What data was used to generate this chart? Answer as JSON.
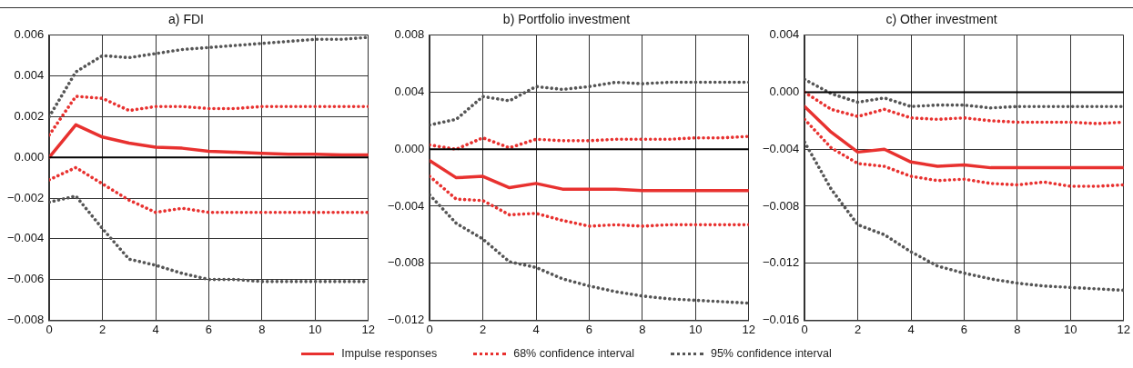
{
  "chart_data": [
    {
      "type": "line",
      "title": "a) FDI",
      "x": [
        0,
        1,
        2,
        3,
        4,
        5,
        6,
        7,
        8,
        9,
        10,
        11,
        12
      ],
      "xlim": [
        0,
        12
      ],
      "xticks": [
        0,
        2,
        4,
        6,
        8,
        10,
        12
      ],
      "ylim": [
        -0.008,
        0.006
      ],
      "yticks": [
        {
          "value": 0.006,
          "label": "0.006"
        },
        {
          "value": 0.004,
          "label": "0.004"
        },
        {
          "value": 0.002,
          "label": "0.002"
        },
        {
          "value": 0,
          "label": "0.000"
        },
        {
          "value": -0.002,
          "label": "−0.002"
        },
        {
          "value": -0.004,
          "label": "−0.004"
        },
        {
          "value": -0.006,
          "label": "−0.006"
        },
        {
          "value": -0.008,
          "label": "−0.008"
        }
      ],
      "grid": true,
      "ref_lines": [
        {
          "axis": "y",
          "value": 0,
          "color": "#000000"
        }
      ],
      "series": [
        {
          "color": "#555555",
          "line_style": "dotted",
          "values": [
            0.002,
            0.0042,
            0.005,
            0.0049,
            0.0051,
            0.0053,
            0.0054,
            0.0055,
            0.0056,
            0.0057,
            0.0058,
            0.0058,
            0.0059
          ]
        },
        {
          "color": "#555555",
          "line_style": "dotted",
          "values": [
            -0.0022,
            -0.0019,
            -0.0035,
            -0.005,
            -0.0053,
            -0.0057,
            -0.006,
            -0.006,
            -0.0061,
            -0.0061,
            -0.0061,
            -0.0061,
            -0.0061
          ]
        },
        {
          "color": "#e8312f",
          "line_style": "dotted",
          "values": [
            0.0011,
            0.003,
            0.0029,
            0.0023,
            0.0025,
            0.0025,
            0.0024,
            0.0024,
            0.0025,
            0.0025,
            0.0025,
            0.0025,
            0.0025
          ]
        },
        {
          "color": "#e8312f",
          "line_style": "dotted",
          "values": [
            -0.0011,
            -0.0005,
            -0.0013,
            -0.0021,
            -0.0027,
            -0.0025,
            -0.0027,
            -0.0027,
            -0.0027,
            -0.0027,
            -0.0027,
            -0.0027,
            -0.0027
          ]
        },
        {
          "color": "#e8312f",
          "line_style": "solid",
          "values": [
            0,
            0.0016,
            0.001,
            0.0007,
            0.0005,
            0.00045,
            0.0003,
            0.00025,
            0.0002,
            0.00015,
            0.00015,
            0.00012,
            0.00012
          ]
        }
      ]
    },
    {
      "type": "line",
      "title": "b) Portfolio investment",
      "x": [
        0,
        1,
        2,
        3,
        4,
        5,
        6,
        7,
        8,
        9,
        10,
        11,
        12
      ],
      "xlim": [
        0,
        12
      ],
      "xticks": [
        0,
        2,
        4,
        6,
        8,
        10,
        12
      ],
      "ylim": [
        -0.012,
        0.008
      ],
      "yticks": [
        {
          "value": 0.008,
          "label": "0.008"
        },
        {
          "value": 0.004,
          "label": "0.004"
        },
        {
          "value": 0,
          "label": "0.000"
        },
        {
          "value": -0.004,
          "label": "−0.004"
        },
        {
          "value": -0.008,
          "label": "−0.008"
        },
        {
          "value": -0.012,
          "label": "−0.012"
        }
      ],
      "grid": true,
      "legend": "bottom",
      "ref_lines": [
        {
          "axis": "y",
          "value": 0,
          "color": "#000000"
        }
      ],
      "series": [
        {
          "name": "Impulse responses",
          "color": "#e8312f",
          "line_style": "solid",
          "values": [
            -0.0008,
            -0.002,
            -0.0019,
            -0.0027,
            -0.0024,
            -0.0028,
            -0.0028,
            -0.0028,
            -0.0029,
            -0.0029,
            -0.0029,
            -0.0029,
            -0.0029
          ]
        },
        {
          "name": "68% confidence interval",
          "color": "#e8312f",
          "line_style": "dotted",
          "values": [
            0.0003,
            0.0,
            0.0008,
            0.0001,
            0.0007,
            0.0006,
            0.0006,
            0.0007,
            0.0007,
            0.0007,
            0.0008,
            0.0008,
            0.0009
          ]
        },
        {
          "color": "#e8312f",
          "line_style": "dotted",
          "values": [
            -0.0019,
            -0.0035,
            -0.0036,
            -0.0046,
            -0.0045,
            -0.005,
            -0.0054,
            -0.0053,
            -0.0054,
            -0.0053,
            -0.0053,
            -0.0053,
            -0.0053
          ]
        },
        {
          "name": "95% confidence interval",
          "color": "#555555",
          "line_style": "dotted",
          "values": [
            0.0017,
            0.0021,
            0.0037,
            0.0034,
            0.0044,
            0.0042,
            0.0044,
            0.0047,
            0.0046,
            0.0047,
            0.0047,
            0.0047,
            0.0047
          ]
        },
        {
          "color": "#555555",
          "line_style": "dotted",
          "values": [
            -0.0032,
            -0.0052,
            -0.0063,
            -0.0079,
            -0.0083,
            -0.0091,
            -0.0096,
            -0.01,
            -0.0103,
            -0.0105,
            -0.0106,
            -0.0107,
            -0.0108
          ]
        }
      ]
    },
    {
      "type": "line",
      "title": "c) Other investment",
      "x": [
        0,
        1,
        2,
        3,
        4,
        5,
        6,
        7,
        8,
        9,
        10,
        11,
        12
      ],
      "xlim": [
        0,
        12
      ],
      "xticks": [
        0,
        2,
        4,
        6,
        8,
        10,
        12
      ],
      "ylim": [
        -0.016,
        0.004
      ],
      "yticks": [
        {
          "value": 0.004,
          "label": "0.004"
        },
        {
          "value": 0,
          "label": "0.000"
        },
        {
          "value": -0.004,
          "label": "−0.004"
        },
        {
          "value": -0.008,
          "label": "−0.008"
        },
        {
          "value": -0.012,
          "label": "−0.012"
        },
        {
          "value": -0.016,
          "label": "−0.016"
        }
      ],
      "grid": true,
      "ref_lines": [
        {
          "axis": "y",
          "value": 0,
          "color": "#000000"
        }
      ],
      "series": [
        {
          "color": "#555555",
          "line_style": "dotted",
          "values": [
            0.0009,
            -0.0001,
            -0.0007,
            -0.0004,
            -0.001,
            -0.0009,
            -0.0009,
            -0.0011,
            -0.001,
            -0.001,
            -0.001,
            -0.001,
            -0.001
          ]
        },
        {
          "color": "#555555",
          "line_style": "dotted",
          "values": [
            -0.0035,
            -0.0068,
            -0.0093,
            -0.01,
            -0.0112,
            -0.0122,
            -0.0127,
            -0.0131,
            -0.0134,
            -0.0136,
            -0.0137,
            -0.0138,
            -0.0139
          ]
        },
        {
          "color": "#e8312f",
          "line_style": "dotted",
          "values": [
            0.0,
            -0.0012,
            -0.0017,
            -0.0012,
            -0.0018,
            -0.0019,
            -0.0018,
            -0.002,
            -0.0021,
            -0.0021,
            -0.0021,
            -0.0022,
            -0.0021
          ]
        },
        {
          "color": "#e8312f",
          "line_style": "dotted",
          "values": [
            -0.0019,
            -0.0039,
            -0.005,
            -0.0052,
            -0.0059,
            -0.0062,
            -0.0061,
            -0.0064,
            -0.0065,
            -0.0063,
            -0.0066,
            -0.0066,
            -0.0065
          ]
        },
        {
          "color": "#e8312f",
          "line_style": "solid",
          "values": [
            -0.001,
            -0.0028,
            -0.0042,
            -0.004,
            -0.0049,
            -0.0052,
            -0.0051,
            -0.0053,
            -0.0053,
            -0.0053,
            -0.0053,
            -0.0053,
            -0.0053
          ]
        }
      ]
    }
  ]
}
